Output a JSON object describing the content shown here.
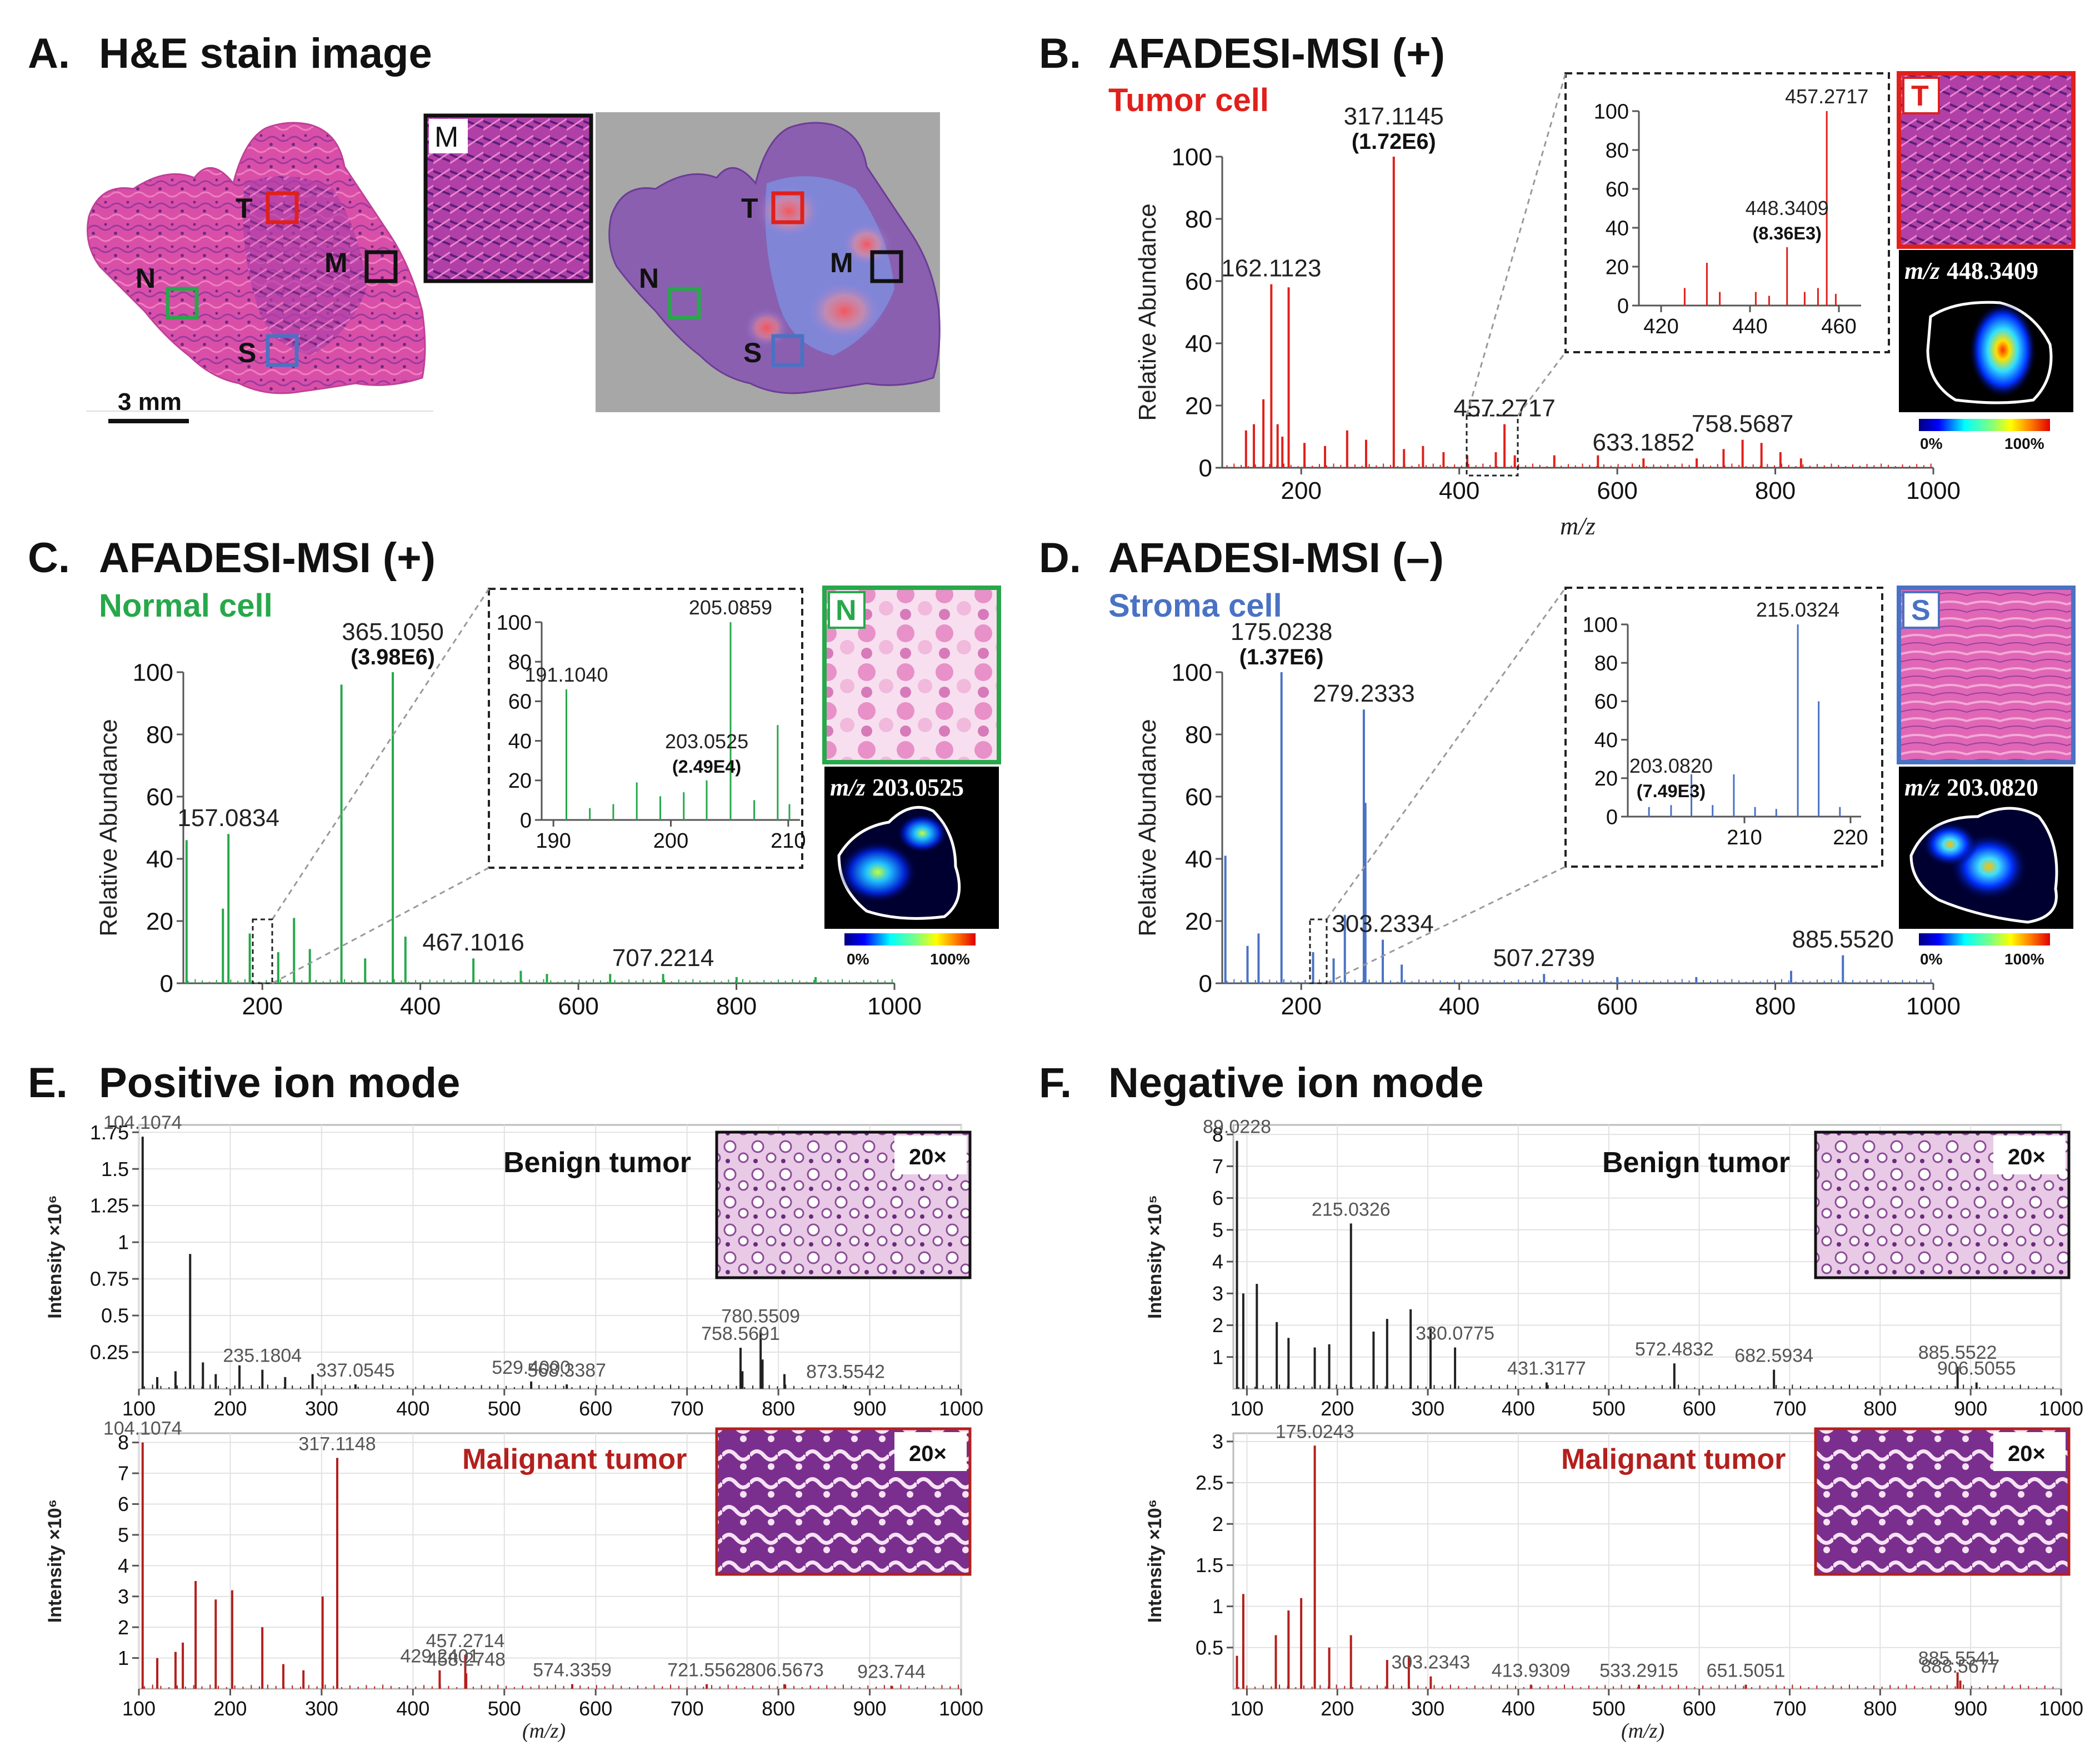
{
  "colors": {
    "tumor": "#e0201b",
    "normal": "#27a84a",
    "stroma": "#4a72c4",
    "black": "#111111",
    "benign_line": "#222222",
    "malignant_line": "#b3201d",
    "he_pink": "#d94fa8",
    "he_purple": "#8a3a9c",
    "gray_bg": "#a7a7a7"
  },
  "panelA": {
    "letter": "A.",
    "title": "H&E stain image",
    "scalebar": "3 mm",
    "inset_label": "M",
    "roi_labels": [
      "T",
      "M",
      "N",
      "S"
    ]
  },
  "panelB": {
    "letter": "B.",
    "title": "AFADESI-MSI (+)",
    "cell_label": "Tumor cell",
    "thumb_letter": "T",
    "ion_prefix": "m/z",
    "ion_value": "448.3409",
    "cbar_min": "0%",
    "cbar_max": "100%",
    "inset_peak_label": "457.2717",
    "inset_ion_label": "448.3409",
    "inset_ion_intensity": "(8.36E3)"
  },
  "panelC": {
    "letter": "C.",
    "title": "AFADESI-MSI (+)",
    "cell_label": "Normal cell",
    "thumb_letter": "N",
    "ion_prefix": "m/z",
    "ion_value": "203.0525",
    "cbar_min": "0%",
    "cbar_max": "100%",
    "inset_peak_label": "205.0859",
    "inset_peak2_label": "191.1040",
    "inset_ion_label": "203.0525",
    "inset_ion_intensity": "(2.49E4)"
  },
  "panelD": {
    "letter": "D.",
    "title": "AFADESI-MSI (–)",
    "cell_label": "Stroma cell",
    "thumb_letter": "S",
    "ion_prefix": "m/z",
    "ion_value": "203.0820",
    "cbar_min": "0%",
    "cbar_max": "100%",
    "inset_peak_label": "215.0324",
    "inset_ion_label": "203.0820",
    "inset_ion_intensity": "(7.49E3)"
  },
  "panelE": {
    "letter": "E.",
    "title": "Positive ion mode",
    "top_label": "Benign tumor",
    "bottom_label": "Malignant tumor",
    "mag": "20×",
    "ylabel": "Intensity ×10⁶",
    "xlabel": "(m/z)"
  },
  "panelF": {
    "letter": "F.",
    "title": "Negative ion mode",
    "top_label": "Benign tumor",
    "bottom_label": "Malignant tumor",
    "mag": "20×",
    "ylabel_top": "Intensity ×10⁵",
    "ylabel_bottom": "Intensity ×10⁶",
    "xlabel": "(m/z)"
  },
  "chart_data": [
    {
      "id": "B",
      "type": "bar",
      "title": "AFADESI-MSI (+) Tumor cell",
      "xlabel": "m/z",
      "ylabel": "Relative Abundance",
      "xlim": [
        100,
        1000
      ],
      "ylim": [
        0,
        100
      ],
      "xticks": [
        200,
        400,
        600,
        800,
        1000
      ],
      "yticks": [
        0,
        20,
        40,
        60,
        80,
        100
      ],
      "color": "#e0201b",
      "peaks": [
        {
          "x": 162.1123,
          "y": 59,
          "label": "162.1123"
        },
        {
          "x": 184.07,
          "y": 58
        },
        {
          "x": 317.1145,
          "y": 100,
          "label": "317.1145",
          "sublabel": "(1.72E6)"
        },
        {
          "x": 130.1,
          "y": 12
        },
        {
          "x": 140.1,
          "y": 14
        },
        {
          "x": 152.1,
          "y": 22
        },
        {
          "x": 170.1,
          "y": 14
        },
        {
          "x": 176.1,
          "y": 10
        },
        {
          "x": 204.1,
          "y": 8
        },
        {
          "x": 230.1,
          "y": 7
        },
        {
          "x": 258.1,
          "y": 12
        },
        {
          "x": 282.1,
          "y": 9
        },
        {
          "x": 330.1,
          "y": 6
        },
        {
          "x": 354.1,
          "y": 7
        },
        {
          "x": 380.1,
          "y": 5
        },
        {
          "x": 410.1,
          "y": 4
        },
        {
          "x": 446.3,
          "y": 5
        },
        {
          "x": 457.2717,
          "y": 14,
          "label": "457.2717"
        },
        {
          "x": 470.3,
          "y": 4
        },
        {
          "x": 520.3,
          "y": 4
        },
        {
          "x": 575.5,
          "y": 4
        },
        {
          "x": 633.1852,
          "y": 3,
          "label": "633.1852"
        },
        {
          "x": 700.5,
          "y": 3
        },
        {
          "x": 734.5,
          "y": 6
        },
        {
          "x": 758.5687,
          "y": 9,
          "label": "758.5687"
        },
        {
          "x": 782.5,
          "y": 8
        },
        {
          "x": 806.5,
          "y": 5
        },
        {
          "x": 832.5,
          "y": 3
        }
      ]
    },
    {
      "id": "B-inset",
      "type": "bar",
      "xlim": [
        415,
        465
      ],
      "ylim": [
        0,
        100
      ],
      "xticks": [
        420,
        440,
        460
      ],
      "yticks": [
        0,
        20,
        40,
        60,
        80,
        100
      ],
      "color": "#e0201b",
      "peaks": [
        {
          "x": 457.2717,
          "y": 100,
          "label": "457.2717"
        },
        {
          "x": 448.3409,
          "y": 30,
          "label": "448.3409",
          "sublabel": "(8.36E3)"
        },
        {
          "x": 425.3,
          "y": 9
        },
        {
          "x": 430.3,
          "y": 22
        },
        {
          "x": 433.2,
          "y": 7
        },
        {
          "x": 441.3,
          "y": 7
        },
        {
          "x": 444.3,
          "y": 5
        },
        {
          "x": 452.3,
          "y": 7
        },
        {
          "x": 455.3,
          "y": 9
        },
        {
          "x": 459.3,
          "y": 6
        }
      ]
    },
    {
      "id": "C",
      "type": "bar",
      "title": "AFADESI-MSI (+) Normal cell",
      "ylabel": "Relative Abundance",
      "xlim": [
        100,
        1000
      ],
      "ylim": [
        0,
        100
      ],
      "xticks": [
        200,
        400,
        600,
        800,
        1000
      ],
      "yticks": [
        0,
        20,
        40,
        60,
        80,
        100
      ],
      "color": "#27a84a",
      "peaks": [
        {
          "x": 104.1,
          "y": 46
        },
        {
          "x": 157.0834,
          "y": 48,
          "label": "157.0834"
        },
        {
          "x": 150.1,
          "y": 24
        },
        {
          "x": 184.1,
          "y": 16
        },
        {
          "x": 220.1,
          "y": 10
        },
        {
          "x": 240.1,
          "y": 21
        },
        {
          "x": 300.1,
          "y": 96
        },
        {
          "x": 365.105,
          "y": 100,
          "label": "365.1050",
          "sublabel": "(3.98E6)"
        },
        {
          "x": 381.1,
          "y": 15
        },
        {
          "x": 330.1,
          "y": 8
        },
        {
          "x": 260.1,
          "y": 11
        },
        {
          "x": 467.1016,
          "y": 8,
          "label": "467.1016"
        },
        {
          "x": 527.1,
          "y": 4
        },
        {
          "x": 560.2,
          "y": 3
        },
        {
          "x": 640.2,
          "y": 3
        },
        {
          "x": 707.2214,
          "y": 3,
          "label": "707.2214"
        },
        {
          "x": 800.2,
          "y": 2
        },
        {
          "x": 900.2,
          "y": 2
        }
      ]
    },
    {
      "id": "C-inset",
      "type": "bar",
      "xlim": [
        189,
        211
      ],
      "ylim": [
        0,
        100
      ],
      "xticks": [
        190,
        200,
        210
      ],
      "yticks": [
        0,
        20,
        40,
        60,
        80,
        100
      ],
      "color": "#27a84a",
      "peaks": [
        {
          "x": 191.104,
          "y": 66,
          "label": "191.1040"
        },
        {
          "x": 205.0859,
          "y": 100,
          "label": "205.0859"
        },
        {
          "x": 203.0525,
          "y": 20,
          "label": "203.0525",
          "sublabel": "(2.49E4)"
        },
        {
          "x": 209.1,
          "y": 48
        },
        {
          "x": 193.1,
          "y": 6
        },
        {
          "x": 195.1,
          "y": 8
        },
        {
          "x": 197.1,
          "y": 19
        },
        {
          "x": 199.1,
          "y": 12
        },
        {
          "x": 201.1,
          "y": 14
        },
        {
          "x": 207.1,
          "y": 10
        },
        {
          "x": 210.1,
          "y": 8
        }
      ]
    },
    {
      "id": "D",
      "type": "bar",
      "title": "AFADESI-MSI (–) Stroma cell",
      "ylabel": "Relative Abundance",
      "xlim": [
        100,
        1000
      ],
      "ylim": [
        0,
        100
      ],
      "xticks": [
        200,
        400,
        600,
        800,
        1000
      ],
      "yticks": [
        0,
        20,
        40,
        60,
        80,
        100
      ],
      "color": "#4a72c4",
      "peaks": [
        {
          "x": 104.0,
          "y": 41
        },
        {
          "x": 175.0238,
          "y": 100,
          "label": "175.0238",
          "sublabel": "(1.37E6)"
        },
        {
          "x": 279.2333,
          "y": 88,
          "label": "279.2333"
        },
        {
          "x": 281.2,
          "y": 58
        },
        {
          "x": 255.2,
          "y": 22
        },
        {
          "x": 146.0,
          "y": 16
        },
        {
          "x": 132.0,
          "y": 12
        },
        {
          "x": 303.2334,
          "y": 14,
          "label": "303.2334"
        },
        {
          "x": 215.0,
          "y": 10
        },
        {
          "x": 241.0,
          "y": 8
        },
        {
          "x": 327.2,
          "y": 6
        },
        {
          "x": 507.2739,
          "y": 3,
          "label": "507.2739"
        },
        {
          "x": 600.0,
          "y": 2
        },
        {
          "x": 700.0,
          "y": 2
        },
        {
          "x": 820.0,
          "y": 4
        },
        {
          "x": 885.552,
          "y": 9,
          "label": "885.5520"
        }
      ]
    },
    {
      "id": "D-inset",
      "type": "bar",
      "xlim": [
        199,
        221
      ],
      "ylim": [
        0,
        100
      ],
      "xticks": [
        210,
        220
      ],
      "yticks": [
        0,
        20,
        40,
        60,
        80,
        100
      ],
      "color": "#4a72c4",
      "peaks": [
        {
          "x": 215.0324,
          "y": 100,
          "label": "215.0324"
        },
        {
          "x": 203.082,
          "y": 6,
          "label": "203.0820",
          "sublabel": "(7.49E3)"
        },
        {
          "x": 205.0,
          "y": 22
        },
        {
          "x": 209.0,
          "y": 22
        },
        {
          "x": 217.0,
          "y": 60
        },
        {
          "x": 201.0,
          "y": 5
        },
        {
          "x": 207.0,
          "y": 6
        },
        {
          "x": 211.0,
          "y": 5
        },
        {
          "x": 213.0,
          "y": 4
        },
        {
          "x": 219.0,
          "y": 5
        }
      ]
    },
    {
      "id": "E-benign",
      "type": "bar",
      "ylabel": "Intensity ×10⁶",
      "xlim": [
        100,
        1000
      ],
      "ylim": [
        0,
        1.8
      ],
      "xticks": [
        100,
        200,
        300,
        400,
        500,
        600,
        700,
        800,
        900,
        1000
      ],
      "yticks": [
        0.25,
        0.5,
        0.75,
        1,
        1.25,
        1.5,
        1.75
      ],
      "ytick_labels": [
        "0.25",
        "0.5",
        "0.75",
        "1",
        "1.25",
        "1.5",
        "1.75"
      ],
      "color": "#222222",
      "peaks": [
        {
          "x": 104.1074,
          "y": 1.72,
          "label": "104.1074"
        },
        {
          "x": 156.1,
          "y": 0.92
        },
        {
          "x": 235.1804,
          "y": 0.13,
          "label": "235.1804"
        },
        {
          "x": 337.0545,
          "y": 0.03,
          "label": "337.0545"
        },
        {
          "x": 529.4,
          "y": 0.05,
          "label": "529.4000"
        },
        {
          "x": 568.3387,
          "y": 0.03,
          "label": "568.3387"
        },
        {
          "x": 758.5691,
          "y": 0.28,
          "label": "758.5691"
        },
        {
          "x": 780.5509,
          "y": 0.4,
          "label": "780.5509"
        },
        {
          "x": 873.5542,
          "y": 0.02,
          "label": "873.5542"
        },
        {
          "x": 120.1,
          "y": 0.08
        },
        {
          "x": 140.1,
          "y": 0.12
        },
        {
          "x": 170.1,
          "y": 0.18
        },
        {
          "x": 184.1,
          "y": 0.1
        },
        {
          "x": 210.1,
          "y": 0.16
        },
        {
          "x": 260.1,
          "y": 0.08
        },
        {
          "x": 290.1,
          "y": 0.1
        },
        {
          "x": 760.6,
          "y": 0.12
        },
        {
          "x": 782.6,
          "y": 0.2
        },
        {
          "x": 806.6,
          "y": 0.1
        }
      ]
    },
    {
      "id": "E-malignant",
      "type": "bar",
      "ylabel": "Intensity ×10⁶",
      "xlabel": "(m/z)",
      "xlim": [
        100,
        1000
      ],
      "ylim": [
        0,
        8.3
      ],
      "xticks": [
        100,
        200,
        300,
        400,
        500,
        600,
        700,
        800,
        900,
        1000
      ],
      "yticks": [
        1,
        2,
        3,
        4,
        5,
        6,
        7,
        8
      ],
      "color": "#b3201d",
      "peaks": [
        {
          "x": 104.1074,
          "y": 8.0,
          "label": "104.1074"
        },
        {
          "x": 317.1148,
          "y": 7.5,
          "label": "317.1148"
        },
        {
          "x": 162.1,
          "y": 3.5
        },
        {
          "x": 184.1,
          "y": 2.9
        },
        {
          "x": 202.1,
          "y": 3.2
        },
        {
          "x": 235.1,
          "y": 2.0
        },
        {
          "x": 301.1,
          "y": 3.0
        },
        {
          "x": 429.2401,
          "y": 0.6,
          "label": "429.2401"
        },
        {
          "x": 457.2714,
          "y": 1.1,
          "label": "457.2714"
        },
        {
          "x": 458.2748,
          "y": 0.5,
          "label": "458.2748"
        },
        {
          "x": 574.3359,
          "y": 0.15,
          "label": "574.3359"
        },
        {
          "x": 721.5562,
          "y": 0.15,
          "label": "721.5562"
        },
        {
          "x": 806.5673,
          "y": 0.15,
          "label": "806.5673"
        },
        {
          "x": 923.744,
          "y": 0.1,
          "label": "923.744"
        },
        {
          "x": 120.1,
          "y": 1.0
        },
        {
          "x": 140.1,
          "y": 1.2
        },
        {
          "x": 148.1,
          "y": 1.5
        },
        {
          "x": 258.1,
          "y": 0.8
        },
        {
          "x": 280.1,
          "y": 0.6
        }
      ]
    },
    {
      "id": "F-benign",
      "type": "bar",
      "ylabel": "Intensity ×10⁵",
      "xlim": [
        85,
        1000
      ],
      "ylim": [
        0,
        8.3
      ],
      "xticks": [
        100,
        200,
        300,
        400,
        500,
        600,
        700,
        800,
        900,
        1000
      ],
      "yticks": [
        1,
        2,
        3,
        4,
        5,
        6,
        7,
        8
      ],
      "color": "#222222",
      "peaks": [
        {
          "x": 89.0228,
          "y": 7.8,
          "label": "89.0228"
        },
        {
          "x": 215.0326,
          "y": 5.2,
          "label": "215.0326"
        },
        {
          "x": 330.0775,
          "y": 1.3,
          "label": "330.0775"
        },
        {
          "x": 431.3177,
          "y": 0.2,
          "label": "431.3177"
        },
        {
          "x": 572.4832,
          "y": 0.8,
          "label": "572.4832"
        },
        {
          "x": 682.5934,
          "y": 0.6,
          "label": "682.5934"
        },
        {
          "x": 885.5522,
          "y": 0.7,
          "label": "885.5522"
        },
        {
          "x": 906.5055,
          "y": 0.2,
          "label": "906.5055"
        },
        {
          "x": 96.0,
          "y": 3.0
        },
        {
          "x": 111.0,
          "y": 3.3
        },
        {
          "x": 133.0,
          "y": 2.1
        },
        {
          "x": 146.0,
          "y": 1.6
        },
        {
          "x": 175.0,
          "y": 1.3
        },
        {
          "x": 255.0,
          "y": 2.2
        },
        {
          "x": 281.0,
          "y": 2.5
        },
        {
          "x": 303.0,
          "y": 1.9
        },
        {
          "x": 240.0,
          "y": 1.8
        },
        {
          "x": 191.0,
          "y": 1.4
        }
      ]
    },
    {
      "id": "F-malignant",
      "type": "bar",
      "ylabel": "Intensity ×10⁶",
      "xlabel": "(m/z)",
      "xlim": [
        85,
        1000
      ],
      "ylim": [
        0,
        3.1
      ],
      "xticks": [
        100,
        200,
        300,
        400,
        500,
        600,
        700,
        800,
        900,
        1000
      ],
      "yticks": [
        0.5,
        1,
        1.5,
        2,
        2.5,
        3
      ],
      "ytick_labels": [
        "0.5",
        "1",
        "1.5",
        "2",
        "2.5",
        "3"
      ],
      "color": "#b3201d",
      "peaks": [
        {
          "x": 175.0243,
          "y": 2.95,
          "label": "175.0243"
        },
        {
          "x": 89.0,
          "y": 0.4
        },
        {
          "x": 96.0,
          "y": 1.15
        },
        {
          "x": 132.0,
          "y": 0.65
        },
        {
          "x": 146.0,
          "y": 0.95
        },
        {
          "x": 160.0,
          "y": 1.1
        },
        {
          "x": 191.0,
          "y": 0.5
        },
        {
          "x": 215.0,
          "y": 0.65
        },
        {
          "x": 255.0,
          "y": 0.35
        },
        {
          "x": 279.0,
          "y": 0.4
        },
        {
          "x": 303.2343,
          "y": 0.15,
          "label": "303.2343"
        },
        {
          "x": 413.9309,
          "y": 0.05,
          "label": "413.9309"
        },
        {
          "x": 533.2915,
          "y": 0.05,
          "label": "533.2915"
        },
        {
          "x": 651.5051,
          "y": 0.05,
          "label": "651.5051"
        },
        {
          "x": 885.5541,
          "y": 0.2,
          "label": "885.5541"
        },
        {
          "x": 888.5677,
          "y": 0.1,
          "label": "888.5677"
        }
      ]
    }
  ]
}
